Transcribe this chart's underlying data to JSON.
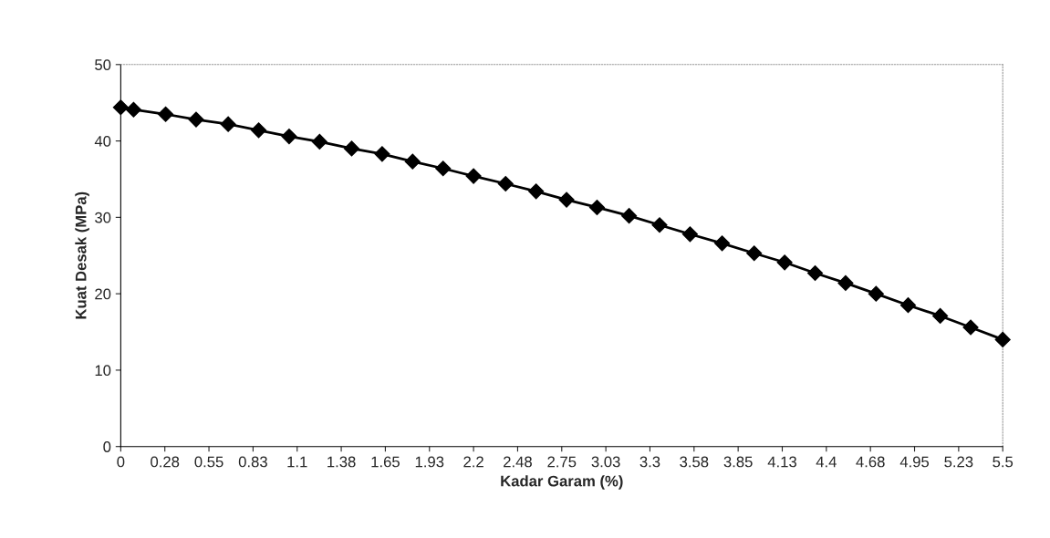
{
  "chart_data": {
    "type": "line",
    "xlabel": "Kadar Garam (%)",
    "ylabel": "Kuat Desak (MPa)",
    "x": [
      0,
      0.08,
      0.28,
      0.47,
      0.67,
      0.86,
      1.05,
      1.24,
      1.44,
      1.63,
      1.82,
      2.01,
      2.2,
      2.4,
      2.59,
      2.78,
      2.97,
      3.17,
      3.36,
      3.55,
      3.75,
      3.95,
      4.14,
      4.33,
      4.52,
      4.71,
      4.91,
      5.11,
      5.3,
      5.5
    ],
    "series": [
      {
        "color": "#000000",
        "values": [
          44.4,
          44.1,
          43.5,
          42.8,
          42.2,
          41.4,
          40.6,
          39.9,
          39.0,
          38.3,
          37.3,
          36.4,
          35.4,
          34.4,
          33.4,
          32.3,
          31.3,
          30.2,
          29.0,
          27.8,
          26.6,
          25.3,
          24.1,
          22.7,
          21.4,
          20.0,
          18.5,
          17.1,
          15.6,
          14.0
        ]
      }
    ],
    "xlim": [
      0,
      5.5
    ],
    "xticks": [
      0,
      {
        "value": 0.275,
        "label": "0.28"
      },
      0.55,
      {
        "value": 0.825,
        "label": "0.83"
      },
      1.1,
      {
        "value": 1.375,
        "label": "1.38"
      },
      1.65,
      {
        "value": 1.925,
        "label": "1.93"
      },
      2.2,
      {
        "value": 2.475,
        "label": "2.48"
      },
      2.75,
      {
        "value": 3.025,
        "label": "3.03"
      },
      3.3,
      {
        "value": 3.575,
        "label": "3.58"
      },
      3.85,
      {
        "value": 4.125,
        "label": "4.13"
      },
      4.4,
      {
        "value": 4.675,
        "label": "4.68"
      },
      4.95,
      {
        "value": 5.225,
        "label": "5.23"
      },
      5.5
    ],
    "ylim": [
      0,
      50
    ],
    "yticks": [
      0,
      10,
      20,
      30,
      40,
      50
    ],
    "grid": false,
    "legend": false,
    "marker": "diamond",
    "line_style": "solid"
  }
}
